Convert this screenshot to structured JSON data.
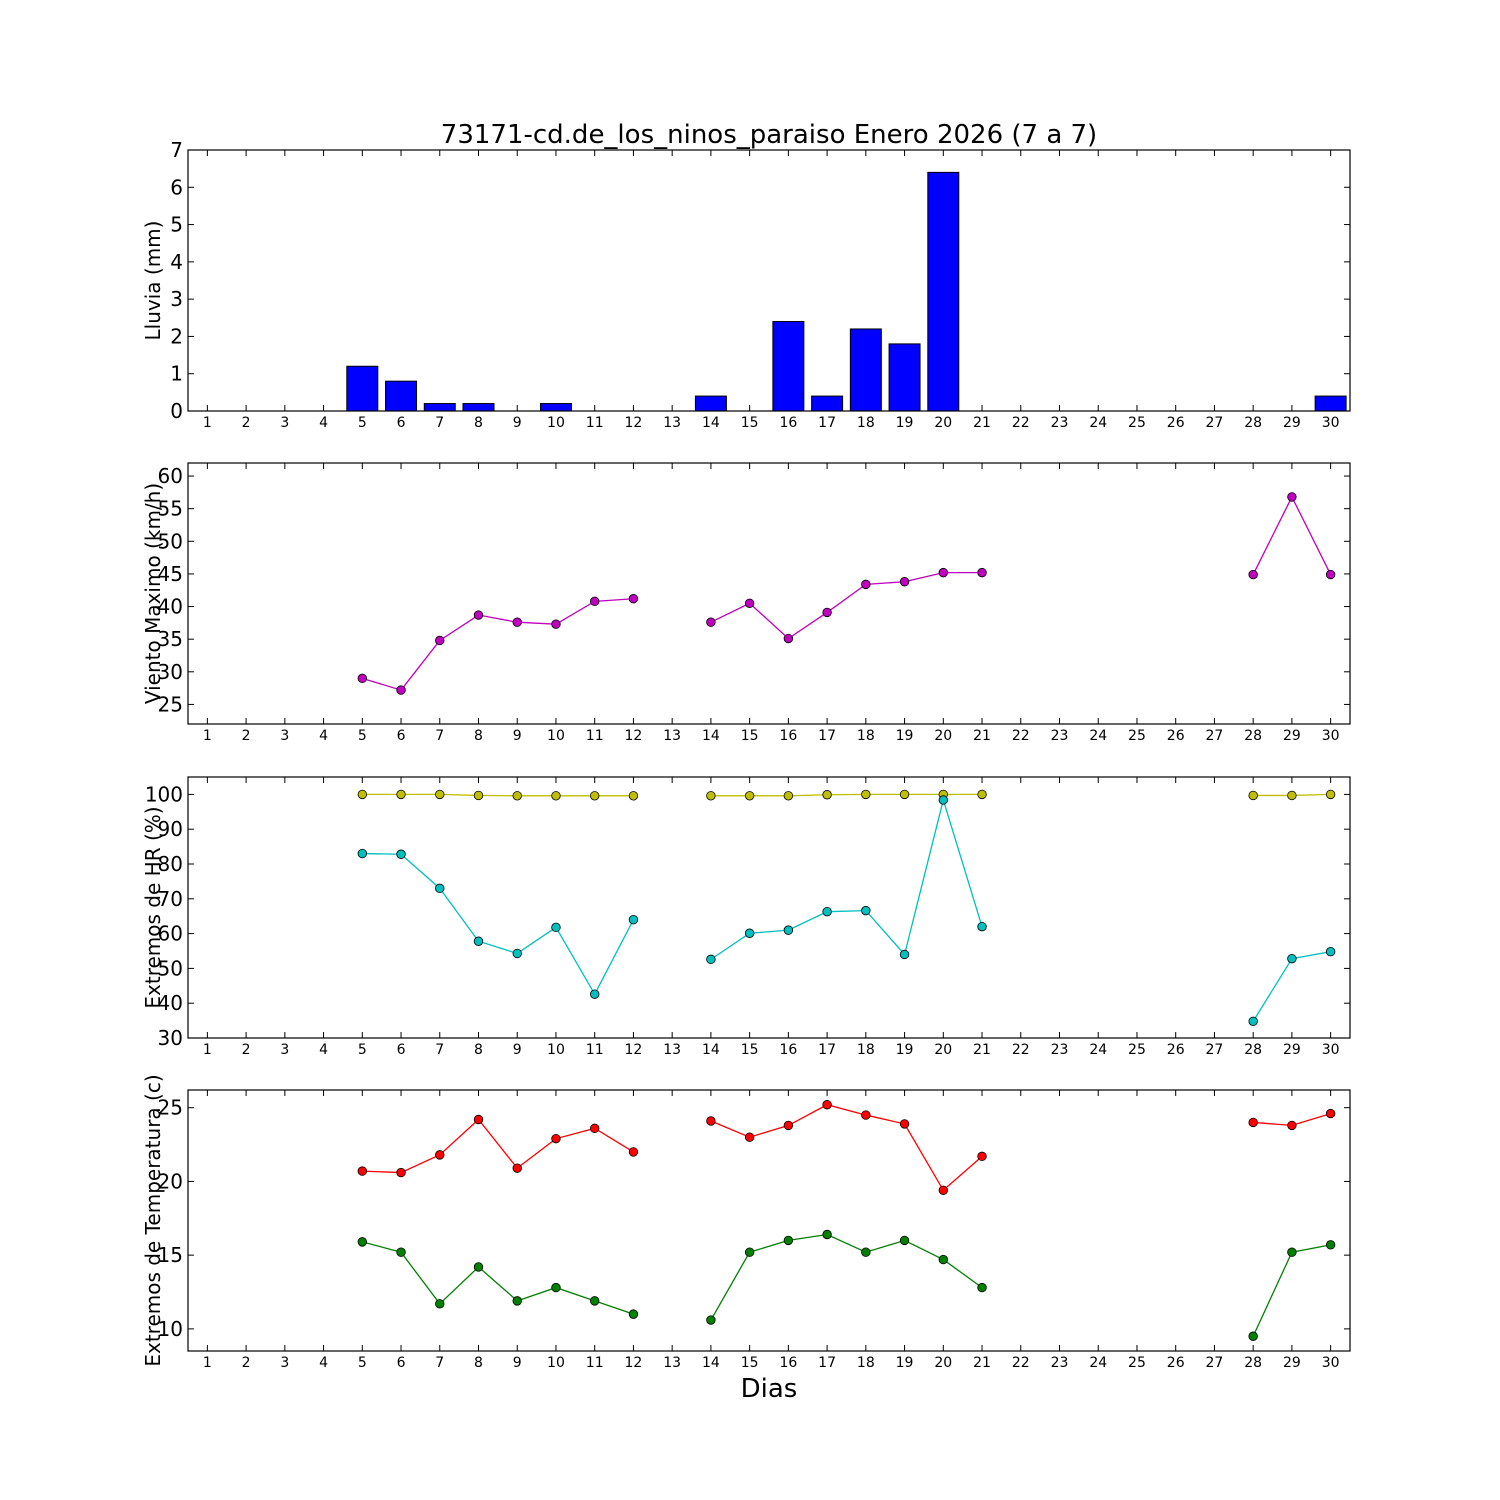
{
  "title": "73171-cd.de_los_ninos_paraiso Enero 2026  (7 a 7)",
  "xlabel": "Dias",
  "colors": {
    "rain": "#0000ff",
    "wind": "#bf00bf",
    "hr_max": "#bfbf00",
    "hr_min": "#00bfbf",
    "temp_max": "#ff0000",
    "temp_min": "#008000"
  },
  "chart_data": [
    {
      "type": "bar",
      "ylabel": "Lluvia (mm)",
      "ylim": [
        0,
        7
      ],
      "yticks": [
        0,
        1,
        2,
        3,
        4,
        5,
        6,
        7
      ],
      "x": [
        1,
        2,
        3,
        4,
        5,
        6,
        7,
        8,
        9,
        10,
        11,
        12,
        13,
        14,
        15,
        16,
        17,
        18,
        19,
        20,
        21,
        22,
        23,
        24,
        25,
        26,
        27,
        28,
        29,
        30
      ],
      "values": [
        0,
        0,
        0,
        0,
        1.2,
        0.8,
        0.2,
        0.2,
        0,
        0.2,
        0,
        0,
        0,
        0.4,
        0,
        2.4,
        0.4,
        2.2,
        1.8,
        6.4,
        0,
        0,
        0,
        0,
        0,
        0,
        0,
        0,
        0,
        0.4
      ]
    },
    {
      "type": "line",
      "ylabel": "Viento Maximo (km/h)",
      "ylim": [
        22,
        62
      ],
      "yticks": [
        25,
        30,
        35,
        40,
        45,
        50,
        55,
        60
      ],
      "x": [
        1,
        2,
        3,
        4,
        5,
        6,
        7,
        8,
        9,
        10,
        11,
        12,
        13,
        14,
        15,
        16,
        17,
        18,
        19,
        20,
        21,
        22,
        23,
        24,
        25,
        26,
        27,
        28,
        29,
        30
      ],
      "series": [
        {
          "values": [
            null,
            null,
            null,
            null,
            29.0,
            27.2,
            34.8,
            38.7,
            37.6,
            37.3,
            40.8,
            41.2,
            null,
            37.6,
            40.5,
            35.1,
            39.1,
            43.4,
            43.8,
            45.2,
            45.2,
            null,
            null,
            null,
            null,
            null,
            null,
            44.9,
            56.8,
            44.9
          ]
        }
      ]
    },
    {
      "type": "line",
      "ylabel": "Extremos de HR (%)",
      "ylim": [
        30,
        105
      ],
      "yticks": [
        30,
        40,
        50,
        60,
        70,
        80,
        90,
        100
      ],
      "x": [
        1,
        2,
        3,
        4,
        5,
        6,
        7,
        8,
        9,
        10,
        11,
        12,
        13,
        14,
        15,
        16,
        17,
        18,
        19,
        20,
        21,
        22,
        23,
        24,
        25,
        26,
        27,
        28,
        29,
        30
      ],
      "series": [
        {
          "values": [
            null,
            null,
            null,
            null,
            100,
            100,
            100,
            99.7,
            99.6,
            99.6,
            99.6,
            99.6,
            null,
            99.6,
            99.6,
            99.6,
            99.9,
            100,
            100,
            100,
            100,
            null,
            null,
            null,
            null,
            null,
            null,
            99.7,
            99.7,
            100
          ]
        },
        {
          "values": [
            null,
            null,
            null,
            null,
            83,
            82.8,
            73,
            57.8,
            54.3,
            61.8,
            42.6,
            64,
            null,
            52.6,
            60.1,
            61,
            66.3,
            66.6,
            54,
            98.4,
            62,
            null,
            null,
            null,
            null,
            null,
            null,
            34.8,
            52.8,
            54.8
          ]
        }
      ]
    },
    {
      "type": "line",
      "ylabel": "Extremos de Temperatura (c)",
      "ylim": [
        8.5,
        26.2
      ],
      "yticks": [
        10,
        15,
        20,
        25
      ],
      "x": [
        1,
        2,
        3,
        4,
        5,
        6,
        7,
        8,
        9,
        10,
        11,
        12,
        13,
        14,
        15,
        16,
        17,
        18,
        19,
        20,
        21,
        22,
        23,
        24,
        25,
        26,
        27,
        28,
        29,
        30
      ],
      "series": [
        {
          "values": [
            null,
            null,
            null,
            null,
            20.7,
            20.6,
            21.8,
            24.2,
            20.9,
            22.9,
            23.6,
            22.0,
            null,
            24.1,
            23.0,
            23.8,
            25.2,
            24.5,
            23.9,
            19.4,
            21.7,
            null,
            null,
            null,
            null,
            null,
            null,
            24.0,
            23.8,
            24.6
          ]
        },
        {
          "values": [
            null,
            null,
            null,
            null,
            15.9,
            15.2,
            11.7,
            14.2,
            11.9,
            12.8,
            11.9,
            11.0,
            null,
            10.6,
            15.2,
            16.0,
            16.4,
            15.2,
            16.0,
            14.7,
            12.8,
            null,
            null,
            null,
            null,
            null,
            null,
            9.5,
            15.2,
            15.7
          ]
        }
      ]
    }
  ]
}
